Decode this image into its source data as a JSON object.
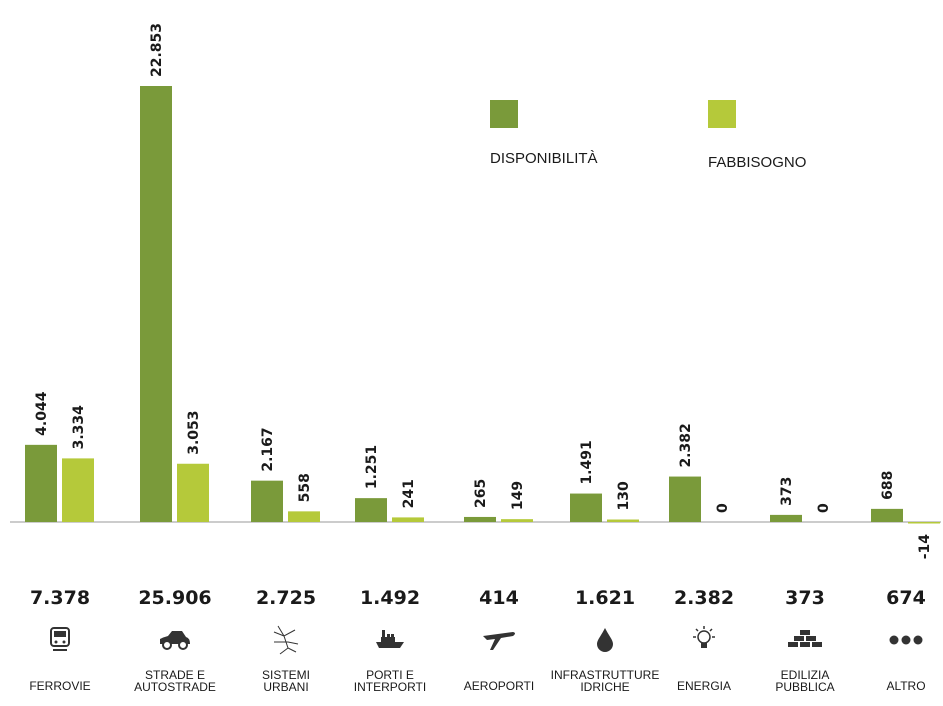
{
  "chart_data": {
    "type": "bar",
    "categories": [
      [
        "FERROVIE"
      ],
      [
        "STRADE E",
        "AUTOSTRADE"
      ],
      [
        "SISTEMI",
        "URBANI"
      ],
      [
        "PORTI E",
        "INTERPORTI"
      ],
      [
        "AEROPORTI"
      ],
      [
        "INFRASTRUTTURE",
        "IDRICHE"
      ],
      [
        "ENERGIA"
      ],
      [
        "EDILIZIA",
        "PUBBLICA"
      ],
      [
        "ALTRO"
      ]
    ],
    "icons": [
      "train-icon",
      "car-icon",
      "city-map-icon",
      "ship-icon",
      "airplane-icon",
      "water-drop-icon",
      "lightbulb-icon",
      "bricks-icon",
      "dots-icon"
    ],
    "series": [
      {
        "name": "DISPONIBILITÀ",
        "color": "#7a9a3a",
        "values": [
          4044,
          22853,
          2167,
          1251,
          265,
          1491,
          2382,
          373,
          688
        ],
        "labels": [
          "4.044",
          "22.853",
          "2.167",
          "1.251",
          "265",
          "1.491",
          "2.382",
          "373",
          "688"
        ]
      },
      {
        "name": "FABBISOGNO",
        "color": "#b5c93a",
        "values": [
          3334,
          3053,
          558,
          241,
          149,
          130,
          0,
          0,
          -14
        ],
        "labels": [
          "3.334",
          "3.053",
          "558",
          "241",
          "149",
          "130",
          "0",
          "0",
          "-14"
        ]
      }
    ],
    "totals": [
      "7.378",
      "25.906",
      "2.725",
      "1.492",
      "414",
      "1.621",
      "2.382",
      "373",
      "674"
    ],
    "legend_position": "top-right",
    "grid": false
  },
  "colors": {
    "icon": "#333333",
    "axis": "#999999"
  }
}
